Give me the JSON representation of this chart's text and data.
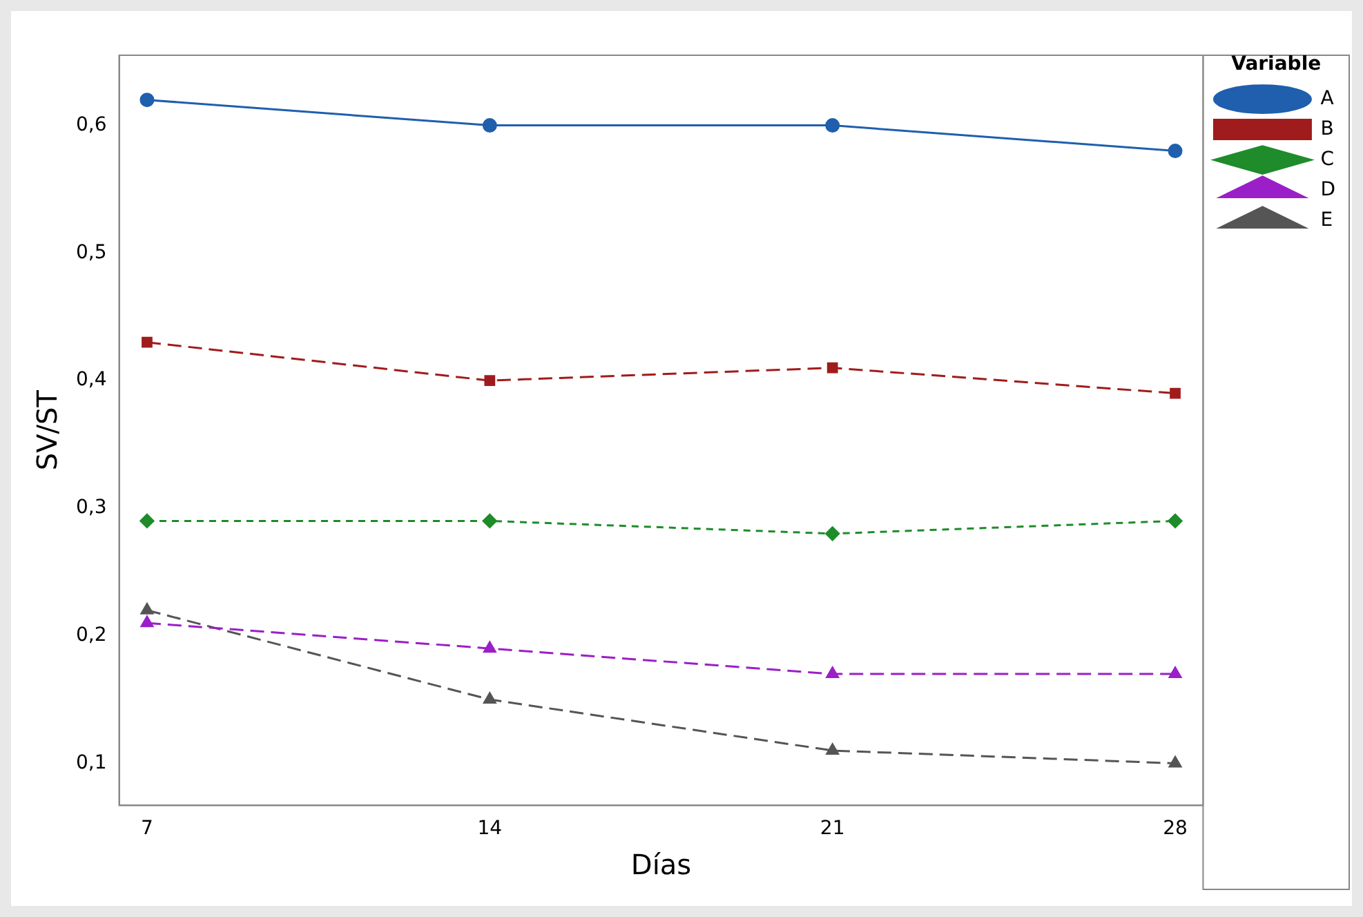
{
  "chart_data": {
    "type": "line",
    "xlabel": "Días",
    "ylabel": "SV/ST",
    "legend_title": "Variable",
    "legend": "right",
    "grid": false,
    "x": [
      7,
      14,
      21,
      28
    ],
    "xlim": [
      6.43,
      28.57
    ],
    "xticks": [
      7,
      14,
      21,
      28
    ],
    "ylim": [
      0.067,
      0.655
    ],
    "yticks": [
      {
        "value": 0.1,
        "label": "0,1"
      },
      {
        "value": 0.2,
        "label": "0,2"
      },
      {
        "value": 0.3,
        "label": "0,3"
      },
      {
        "value": 0.4,
        "label": "0,4"
      },
      {
        "value": 0.5,
        "label": "0,5"
      },
      {
        "value": 0.6,
        "label": "0,6"
      }
    ],
    "series": [
      {
        "name": "A",
        "color": "#1f5fad",
        "values": [
          0.62,
          0.6,
          0.6,
          0.58
        ],
        "marker": "circle",
        "line_style": "solid"
      },
      {
        "name": "B",
        "color": "#a01c1c",
        "values": [
          0.43,
          0.4,
          0.41,
          0.39
        ],
        "marker": "square",
        "line_style": "dashed"
      },
      {
        "name": "C",
        "color": "#1e8c2a",
        "values": [
          0.29,
          0.29,
          0.28,
          0.29
        ],
        "marker": "diamond",
        "line_style": "dotted"
      },
      {
        "name": "D",
        "color": "#9b1fc8",
        "values": [
          0.21,
          0.19,
          0.17,
          0.17
        ],
        "marker": "triangle",
        "line_style": "dashed"
      },
      {
        "name": "E",
        "color": "#555555",
        "values": [
          0.22,
          0.15,
          0.11,
          0.1
        ],
        "marker": "triangle",
        "line_style": "dashed"
      }
    ]
  }
}
